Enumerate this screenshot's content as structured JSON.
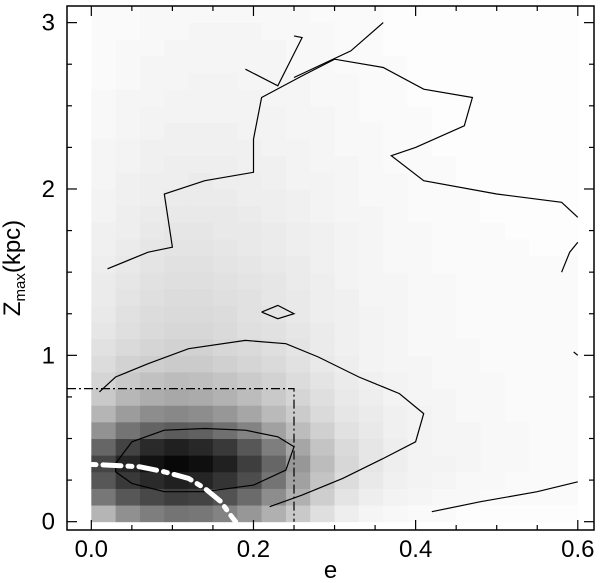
{
  "chart_data": {
    "type": "heatmap",
    "title": "",
    "xlabel": "e",
    "ylabel": {
      "main": "Z",
      "sub": "max",
      "rest": "(kpc)"
    },
    "xlim": [
      -0.03,
      0.62
    ],
    "ylim": [
      -0.05,
      3.1
    ],
    "xticks": [
      0.0,
      0.2,
      0.4,
      0.6
    ],
    "xtick_labels": [
      "0.0",
      "0.2",
      "0.4",
      "0.6"
    ],
    "yticks": [
      0,
      1,
      2,
      3
    ],
    "ytick_labels": [
      "0",
      "1",
      "2",
      "3"
    ],
    "grid": false,
    "cell_size": {
      "de": 0.03,
      "dz": 0.1
    },
    "grid_origin": {
      "e": 0.0,
      "z": 0.0
    },
    "density_rows_bottom_to_top": [
      [
        0.3,
        0.45,
        0.52,
        0.56,
        0.55,
        0.5,
        0.42,
        0.32,
        0.22,
        0.13,
        0.07,
        0.04,
        0.03,
        0.02,
        0.02,
        0.01,
        0.01,
        0.01,
        0.01,
        0.01
      ],
      [
        0.55,
        0.68,
        0.74,
        0.78,
        0.76,
        0.7,
        0.6,
        0.46,
        0.32,
        0.2,
        0.11,
        0.07,
        0.05,
        0.04,
        0.03,
        0.03,
        0.02,
        0.02,
        0.02,
        0.02
      ],
      [
        0.68,
        0.8,
        0.86,
        0.9,
        0.88,
        0.82,
        0.72,
        0.56,
        0.38,
        0.24,
        0.14,
        0.09,
        0.06,
        0.05,
        0.04,
        0.03,
        0.03,
        0.02,
        0.02,
        0.02
      ],
      [
        0.75,
        0.88,
        0.96,
        1.0,
        0.97,
        0.9,
        0.78,
        0.62,
        0.42,
        0.27,
        0.16,
        0.1,
        0.07,
        0.05,
        0.05,
        0.04,
        0.03,
        0.03,
        0.02,
        0.02
      ],
      [
        0.62,
        0.76,
        0.86,
        0.9,
        0.87,
        0.8,
        0.68,
        0.52,
        0.36,
        0.24,
        0.15,
        0.1,
        0.07,
        0.05,
        0.04,
        0.04,
        0.03,
        0.03,
        0.02,
        0.02
      ],
      [
        0.44,
        0.56,
        0.63,
        0.66,
        0.64,
        0.58,
        0.5,
        0.38,
        0.27,
        0.19,
        0.12,
        0.09,
        0.06,
        0.05,
        0.04,
        0.04,
        0.03,
        0.03,
        0.02,
        0.02
      ],
      [
        0.3,
        0.4,
        0.46,
        0.48,
        0.46,
        0.42,
        0.36,
        0.28,
        0.21,
        0.15,
        0.1,
        0.08,
        0.06,
        0.05,
        0.04,
        0.03,
        0.03,
        0.02,
        0.02,
        0.02
      ],
      [
        0.22,
        0.29,
        0.33,
        0.35,
        0.34,
        0.31,
        0.27,
        0.22,
        0.17,
        0.13,
        0.09,
        0.07,
        0.05,
        0.04,
        0.04,
        0.03,
        0.03,
        0.02,
        0.02,
        0.02
      ],
      [
        0.17,
        0.22,
        0.25,
        0.27,
        0.26,
        0.24,
        0.21,
        0.18,
        0.14,
        0.11,
        0.08,
        0.06,
        0.05,
        0.04,
        0.03,
        0.03,
        0.03,
        0.02,
        0.02,
        0.02
      ],
      [
        0.14,
        0.18,
        0.2,
        0.21,
        0.21,
        0.19,
        0.17,
        0.15,
        0.12,
        0.09,
        0.07,
        0.05,
        0.04,
        0.04,
        0.03,
        0.03,
        0.02,
        0.02,
        0.02,
        0.02
      ],
      [
        0.12,
        0.15,
        0.17,
        0.18,
        0.18,
        0.16,
        0.15,
        0.13,
        0.11,
        0.08,
        0.06,
        0.05,
        0.04,
        0.03,
        0.03,
        0.03,
        0.02,
        0.02,
        0.02,
        0.02
      ],
      [
        0.1,
        0.13,
        0.15,
        0.16,
        0.16,
        0.15,
        0.13,
        0.12,
        0.1,
        0.08,
        0.06,
        0.05,
        0.04,
        0.03,
        0.03,
        0.02,
        0.02,
        0.02,
        0.02,
        0.02
      ],
      [
        0.09,
        0.12,
        0.14,
        0.15,
        0.15,
        0.14,
        0.12,
        0.11,
        0.09,
        0.07,
        0.06,
        0.05,
        0.04,
        0.03,
        0.03,
        0.02,
        0.02,
        0.02,
        0.02,
        0.02
      ],
      [
        0.08,
        0.11,
        0.13,
        0.14,
        0.14,
        0.13,
        0.12,
        0.1,
        0.09,
        0.07,
        0.06,
        0.04,
        0.04,
        0.03,
        0.03,
        0.02,
        0.02,
        0.02,
        0.02,
        0.02
      ],
      [
        0.08,
        0.1,
        0.12,
        0.13,
        0.13,
        0.12,
        0.11,
        0.1,
        0.08,
        0.07,
        0.05,
        0.04,
        0.04,
        0.03,
        0.03,
        0.02,
        0.02,
        0.02,
        0.02,
        0.02
      ],
      [
        0.07,
        0.09,
        0.11,
        0.12,
        0.12,
        0.11,
        0.1,
        0.09,
        0.08,
        0.06,
        0.05,
        0.04,
        0.03,
        0.03,
        0.02,
        0.02,
        0.02,
        0.02,
        0.02,
        0.02
      ],
      [
        0.06,
        0.08,
        0.1,
        0.11,
        0.11,
        0.1,
        0.09,
        0.08,
        0.07,
        0.06,
        0.05,
        0.04,
        0.03,
        0.03,
        0.02,
        0.02,
        0.02,
        0.02,
        0.01,
        0.01
      ],
      [
        0.06,
        0.07,
        0.09,
        0.1,
        0.1,
        0.09,
        0.09,
        0.08,
        0.07,
        0.06,
        0.05,
        0.04,
        0.03,
        0.03,
        0.02,
        0.02,
        0.02,
        0.01,
        0.01,
        0.01
      ],
      [
        0.05,
        0.07,
        0.08,
        0.09,
        0.09,
        0.09,
        0.08,
        0.07,
        0.06,
        0.05,
        0.04,
        0.04,
        0.03,
        0.02,
        0.02,
        0.02,
        0.01,
        0.01,
        0.01,
        0.01
      ],
      [
        0.05,
        0.06,
        0.07,
        0.08,
        0.08,
        0.08,
        0.07,
        0.07,
        0.06,
        0.05,
        0.04,
        0.03,
        0.03,
        0.02,
        0.02,
        0.02,
        0.01,
        0.01,
        0.01,
        0.01
      ],
      [
        0.04,
        0.06,
        0.07,
        0.07,
        0.08,
        0.07,
        0.07,
        0.06,
        0.05,
        0.05,
        0.04,
        0.03,
        0.03,
        0.02,
        0.02,
        0.01,
        0.01,
        0.01,
        0.01,
        0.01
      ],
      [
        0.04,
        0.05,
        0.06,
        0.07,
        0.07,
        0.07,
        0.06,
        0.06,
        0.05,
        0.04,
        0.04,
        0.03,
        0.02,
        0.02,
        0.02,
        0.01,
        0.01,
        0.01,
        0.01,
        0.01
      ],
      [
        0.04,
        0.05,
        0.06,
        0.06,
        0.06,
        0.06,
        0.06,
        0.05,
        0.05,
        0.04,
        0.03,
        0.03,
        0.02,
        0.02,
        0.01,
        0.01,
        0.01,
        0.01,
        0.01,
        0.01
      ],
      [
        0.03,
        0.04,
        0.05,
        0.06,
        0.06,
        0.06,
        0.05,
        0.05,
        0.04,
        0.04,
        0.03,
        0.03,
        0.02,
        0.02,
        0.01,
        0.01,
        0.01,
        0.01,
        0.01,
        0.01
      ],
      [
        0.03,
        0.04,
        0.05,
        0.05,
        0.05,
        0.05,
        0.05,
        0.05,
        0.04,
        0.04,
        0.03,
        0.02,
        0.02,
        0.02,
        0.01,
        0.01,
        0.01,
        0.01,
        0.01,
        0.01
      ],
      [
        0.03,
        0.04,
        0.04,
        0.05,
        0.05,
        0.05,
        0.05,
        0.04,
        0.04,
        0.03,
        0.03,
        0.02,
        0.02,
        0.01,
        0.01,
        0.01,
        0.01,
        0.01,
        0.01,
        0.01
      ],
      [
        0.02,
        0.03,
        0.04,
        0.04,
        0.05,
        0.05,
        0.04,
        0.04,
        0.04,
        0.03,
        0.03,
        0.02,
        0.02,
        0.01,
        0.01,
        0.01,
        0.01,
        0.01,
        0.01,
        0.01
      ],
      [
        0.02,
        0.03,
        0.04,
        0.04,
        0.04,
        0.04,
        0.04,
        0.04,
        0.03,
        0.03,
        0.02,
        0.02,
        0.02,
        0.01,
        0.01,
        0.01,
        0.01,
        0.01,
        0.01,
        0.01
      ],
      [
        0.02,
        0.03,
        0.03,
        0.04,
        0.04,
        0.04,
        0.04,
        0.04,
        0.03,
        0.03,
        0.02,
        0.02,
        0.01,
        0.01,
        0.01,
        0.01,
        0.01,
        0.01,
        0.01,
        0.01
      ],
      [
        0.02,
        0.02,
        0.03,
        0.03,
        0.04,
        0.04,
        0.04,
        0.03,
        0.03,
        0.03,
        0.02,
        0.02,
        0.01,
        0.01,
        0.01,
        0.01,
        0.01,
        0.01,
        0.01,
        0.01
      ],
      [
        0.02,
        0.02,
        0.03,
        0.03,
        0.03,
        0.03,
        0.03,
        0.03,
        0.03,
        0.02,
        0.02,
        0.02,
        0.01,
        0.01,
        0.01,
        0.01,
        0.01,
        0.01,
        0.01,
        0.01
      ]
    ],
    "contours": [
      {
        "name": "contour-inner",
        "points": [
          [
            0.03,
            0.35
          ],
          [
            0.05,
            0.48
          ],
          [
            0.09,
            0.55
          ],
          [
            0.14,
            0.56
          ],
          [
            0.19,
            0.55
          ],
          [
            0.23,
            0.51
          ],
          [
            0.25,
            0.45
          ],
          [
            0.24,
            0.31
          ],
          [
            0.2,
            0.22
          ],
          [
            0.14,
            0.18
          ],
          [
            0.09,
            0.18
          ],
          [
            0.05,
            0.23
          ],
          [
            0.03,
            0.3
          ],
          [
            0.03,
            0.35
          ]
        ]
      },
      {
        "name": "contour-middle",
        "points": [
          [
            0.01,
            0.78
          ],
          [
            0.03,
            0.87
          ],
          [
            0.07,
            0.95
          ],
          [
            0.12,
            1.04
          ],
          [
            0.19,
            1.09
          ],
          [
            0.24,
            1.07
          ],
          [
            0.28,
            0.99
          ],
          [
            0.33,
            0.87
          ],
          [
            0.38,
            0.77
          ],
          [
            0.41,
            0.65
          ],
          [
            0.4,
            0.48
          ],
          [
            0.36,
            0.38
          ],
          [
            0.31,
            0.26
          ],
          [
            0.26,
            0.16
          ],
          [
            0.22,
            0.09
          ]
        ]
      },
      {
        "name": "contour-outer",
        "points": [
          [
            0.02,
            1.52
          ],
          [
            0.07,
            1.62
          ],
          [
            0.1,
            1.65
          ],
          [
            0.09,
            1.97
          ],
          [
            0.14,
            2.05
          ],
          [
            0.2,
            2.1
          ],
          [
            0.2,
            2.3
          ],
          [
            0.21,
            2.55
          ],
          [
            0.26,
            2.68
          ],
          [
            0.3,
            2.78
          ],
          [
            0.36,
            2.73
          ],
          [
            0.41,
            2.6
          ],
          [
            0.47,
            2.55
          ],
          [
            0.46,
            2.38
          ],
          [
            0.4,
            2.25
          ],
          [
            0.37,
            2.2
          ],
          [
            0.41,
            2.05
          ],
          [
            0.5,
            1.97
          ],
          [
            0.58,
            1.92
          ],
          [
            0.6,
            1.83
          ]
        ]
      },
      {
        "name": "contour-top-left",
        "points": [
          [
            0.19,
            2.72
          ],
          [
            0.23,
            2.62
          ],
          [
            0.26,
            2.91
          ],
          [
            0.25,
            2.92
          ]
        ]
      },
      {
        "name": "contour-top-right",
        "points": [
          [
            0.25,
            2.67
          ],
          [
            0.32,
            2.83
          ],
          [
            0.36,
            3.0
          ]
        ]
      },
      {
        "name": "contour-small-island",
        "points": [
          [
            0.21,
            1.26
          ],
          [
            0.23,
            1.3
          ],
          [
            0.25,
            1.25
          ],
          [
            0.23,
            1.22
          ],
          [
            0.21,
            1.26
          ]
        ]
      },
      {
        "name": "contour-right-edge",
        "points": [
          [
            0.58,
            1.5
          ],
          [
            0.59,
            1.62
          ],
          [
            0.6,
            1.68
          ]
        ]
      },
      {
        "name": "contour-right-mark",
        "points": [
          [
            0.595,
            1.02
          ],
          [
            0.6,
            1.0
          ]
        ]
      },
      {
        "name": "contour-bottom-right",
        "points": [
          [
            0.42,
            0.06
          ],
          [
            0.48,
            0.12
          ],
          [
            0.55,
            0.18
          ],
          [
            0.6,
            0.24
          ]
        ]
      }
    ],
    "box": {
      "name": "thin-disk-box",
      "e_max": 0.25,
      "z_max": 0.8,
      "style": "dash-dot"
    },
    "curve": {
      "name": "white-dashdot-curve",
      "style": "dash-dot",
      "color": "#ffffff",
      "points": [
        [
          -0.03,
          0.35
        ],
        [
          0.02,
          0.34
        ],
        [
          0.06,
          0.33
        ],
        [
          0.09,
          0.3
        ],
        [
          0.12,
          0.26
        ],
        [
          0.14,
          0.2
        ],
        [
          0.16,
          0.12
        ],
        [
          0.17,
          0.05
        ],
        [
          0.178,
          0.0
        ]
      ]
    }
  }
}
